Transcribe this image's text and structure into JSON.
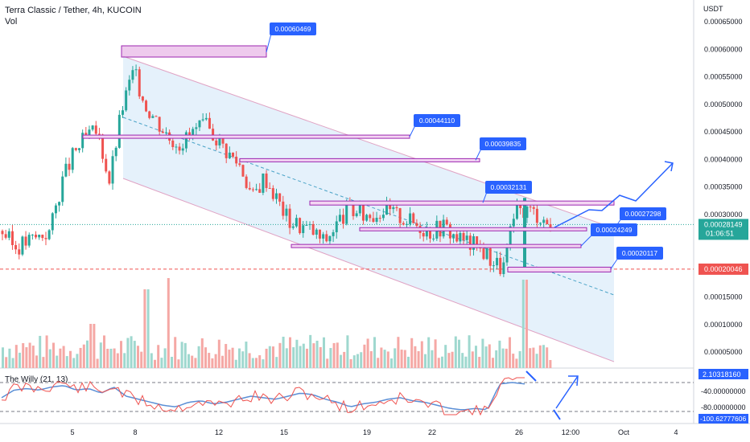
{
  "header": {
    "symbol_title": "Terra Classic / Tether, 4h, KUCOIN",
    "volume_label": "Vol",
    "indicator_label": "The Willy (21, 13)"
  },
  "price_axis": {
    "unit": "USDT",
    "ticks": [
      "0.00065000",
      "0.00060000",
      "0.00055000",
      "0.00050000",
      "0.00045000",
      "0.00040000",
      "0.00035000",
      "0.00030000",
      "0.00025000",
      "0.00020000",
      "0.00015000",
      "0.00010000",
      "0.00005000"
    ],
    "current_price": "0.00028149",
    "countdown": "01:06:51",
    "red_line_label": "0.00020046"
  },
  "indicator_axis": {
    "current_value": "2.10318160",
    "ticks": [
      "-40.00000000",
      "-80.00000000"
    ],
    "min_label": "-100.62777606"
  },
  "time_axis": {
    "ticks": [
      "5",
      "8",
      "12",
      "15",
      "19",
      "22",
      "26",
      "12:00",
      "Oct",
      "4"
    ]
  },
  "annotations": {
    "labels": [
      "0.00060469",
      "0.00044110",
      "0.00039835",
      "0.00032131",
      "0.00027298",
      "0.00024249",
      "0.00020117"
    ]
  },
  "colors": {
    "up": "#26a69a",
    "down": "#ef5350",
    "channel_fill": "#cfe6f7",
    "zone": "#9c27b0",
    "label_bg": "#2962ff",
    "willy": "#ef5350",
    "willy_signal": "#5b8fd6"
  },
  "chart_data": {
    "type": "candlestick",
    "title": "Terra Classic / Tether, 4h, KUCOIN",
    "ylabel": "USDT",
    "ylim": [
      2e-05,
      0.00068
    ],
    "grid": false,
    "zones": [
      0.00060469,
      0.0004411,
      0.00039835,
      0.00032131,
      0.00027298,
      0.00024249,
      0.00020117
    ],
    "close_path": [
      0.00027,
      0.00024,
      0.00025,
      0.00026,
      0.00027,
      0.00036,
      0.00041,
      0.00044,
      0.00045,
      0.00036,
      0.00049,
      0.00056,
      0.0005,
      0.00047,
      0.00044,
      0.00043,
      0.00045,
      0.00046,
      0.00044,
      0.00041,
      0.00039,
      0.00033,
      0.00037,
      0.00033,
      0.00029,
      0.00028,
      0.00027,
      0.00025,
      0.00028,
      0.00031,
      0.0003,
      0.0003,
      0.00031,
      0.0003,
      0.00029,
      0.00028,
      0.00027,
      0.00028,
      0.00026,
      0.00025,
      0.00024,
      0.00022,
      0.0002,
      0.0003,
      0.00031,
      0.0003,
      0.00028
    ]
  }
}
